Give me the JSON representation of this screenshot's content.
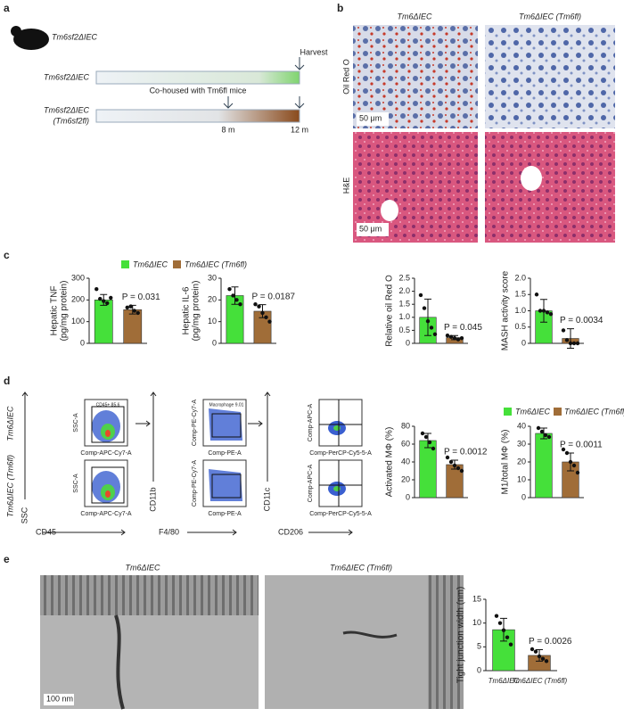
{
  "panel_labels": [
    "a",
    "b",
    "c",
    "d",
    "e"
  ],
  "panel_a": {
    "mouse_label": "Tm6sf2ΔIEC",
    "harvest": "Harvest",
    "row1_label": "Tm6sf2ΔIEC",
    "cohoused": "Co-housed with Tm6fl mice",
    "row2_label": [
      "Tm6sf2ΔIEC",
      "(Tm6sf2fl)"
    ],
    "t1": "8 m",
    "t2": "12 m"
  },
  "panel_b": {
    "columns": [
      "Tm6ΔIEC",
      "Tm6ΔIEC (Tm6fl)"
    ],
    "rows": [
      "Oil Red O",
      "H&E"
    ],
    "scale_bars": [
      "50 μm",
      "50 μm"
    ]
  },
  "legend_c": [
    "Tm6ΔIEC",
    "Tm6ΔIEC (Tm6fl)"
  ],
  "legend_d": [
    "Tm6ΔIEC",
    "Tm6ΔIEC (Tm6fl)"
  ],
  "panel_d": {
    "row_labels": [
      "Tm6ΔIEC",
      "Tm6ΔIEC (Tm6fl)"
    ],
    "axis_titles": [
      "SSC",
      "CD45",
      "CD11b",
      "F4/80",
      "CD11c",
      "CD206"
    ],
    "plot_y": [
      "SSC-A",
      "Comp-PE-Cy7-A",
      "Comp-APC-A"
    ],
    "plot_x": [
      "Comp-APC-Cy7-A",
      "Comp-PE-A",
      "Comp-PerCP-Cy5-5-A"
    ],
    "gates": [
      "CD45+ 85.6",
      "Macrophage 9.01"
    ]
  },
  "panel_e": {
    "images": [
      "Tm6ΔIEC",
      "Tm6ΔIEC (Tm6fl)"
    ],
    "scale_bar": "100 nm"
  },
  "chart_data": [
    {
      "type": "bar",
      "ylabel": [
        "Hepatic TNF",
        "(pg/mg protein)"
      ],
      "colors": [
        "#45e03a",
        "#a06d38"
      ],
      "values": [
        200,
        155
      ],
      "errors": [
        25,
        20
      ],
      "points": [
        [
          250,
          205,
          195,
          185,
          210
        ],
        [
          165,
          170,
          150,
          140
        ]
      ],
      "ylim": [
        0,
        300
      ],
      "yticks": [
        0,
        100,
        200,
        300
      ],
      "annotation": "P = 0.031"
    },
    {
      "type": "bar",
      "ylabel": [
        "Hepatic IL-6",
        "(pg/mg protein)"
      ],
      "colors": [
        "#45e03a",
        "#a06d38"
      ],
      "values": [
        22,
        14.8
      ],
      "errors": [
        4,
        3
      ],
      "points": [
        [
          25,
          22,
          20,
          18
        ],
        [
          18,
          17,
          14,
          12,
          10
        ]
      ],
      "ylim": [
        0,
        30
      ],
      "yticks": [
        0,
        10,
        20,
        30
      ],
      "annotation": "P = 0.0187"
    },
    {
      "type": "bar",
      "ylabel": [
        "Relative oil Red O"
      ],
      "colors": [
        "#45e03a",
        "#a06d38"
      ],
      "values": [
        1.0,
        0.22
      ],
      "errors": [
        0.7,
        0.08
      ],
      "points": [
        [
          1.85,
          1.35,
          0.85,
          0.6,
          0.35
        ],
        [
          0.3,
          0.25,
          0.2,
          0.15,
          0.2
        ]
      ],
      "ylim": [
        0,
        2.5
      ],
      "yticks": [
        0,
        0.5,
        {
          "value": 1,
          "label": "1.0"
        },
        1.5,
        {
          "value": 2,
          "label": "2.0"
        },
        2.5
      ],
      "annotation": "P = 0.045"
    },
    {
      "type": "bar",
      "ylabel": [
        "MASH activity score"
      ],
      "colors": [
        "#45e03a",
        "#a06d38"
      ],
      "values": [
        1.0,
        0.15
      ],
      "errors": [
        0.35,
        0.3
      ],
      "points": [
        [
          1.5,
          1,
          1,
          0.95,
          0.9
        ],
        [
          0.4,
          0.1,
          0,
          0,
          0
        ]
      ],
      "ylim": [
        0,
        2
      ],
      "yticks": [
        0,
        0.5,
        {
          "value": 1,
          "label": "1.0"
        },
        1.5,
        {
          "value": 2,
          "label": "2.0"
        }
      ],
      "annotation": "P = 0.0034"
    },
    {
      "type": "bar",
      "ylabel": [
        "Activated MΦ (%)"
      ],
      "colors": [
        "#45e03a",
        "#a06d38"
      ],
      "values": [
        64,
        37
      ],
      "errors": [
        8,
        5
      ],
      "points": [
        [
          72,
          68,
          62,
          55
        ],
        [
          45,
          40,
          36,
          33,
          30
        ]
      ],
      "ylim": [
        0,
        80
      ],
      "yticks": [
        0,
        20,
        40,
        60,
        80
      ],
      "annotation": "P = 0.0012"
    },
    {
      "type": "bar",
      "ylabel": [
        "M1/total MΦ (%)"
      ],
      "colors": [
        "#45e03a",
        "#a06d38"
      ],
      "values": [
        36,
        20
      ],
      "errors": [
        3,
        5
      ],
      "points": [
        [
          39,
          37,
          35,
          34
        ],
        [
          27,
          25,
          20,
          18,
          14
        ]
      ],
      "ylim": [
        0,
        40
      ],
      "yticks": [
        0,
        10,
        20,
        30,
        40
      ],
      "annotation": "P = 0.0011"
    },
    {
      "type": "bar",
      "ylabel": [
        "Tight junction width (nm)"
      ],
      "colors": [
        "#45e03a",
        "#a06d38"
      ],
      "values": [
        8.6,
        3.2
      ],
      "errors": [
        2.4,
        1.2
      ],
      "points": [
        [
          11.5,
          10,
          8.5,
          7,
          5.5
        ],
        [
          4.5,
          4,
          3,
          2.5,
          2
        ]
      ],
      "ylim": [
        0,
        15
      ],
      "yticks": [
        0,
        5,
        10,
        15
      ],
      "annotation": "P = 0.0026",
      "categories": [
        "Tm6ΔIEC",
        "Tm6ΔIEC (Tm6fl)"
      ]
    }
  ]
}
